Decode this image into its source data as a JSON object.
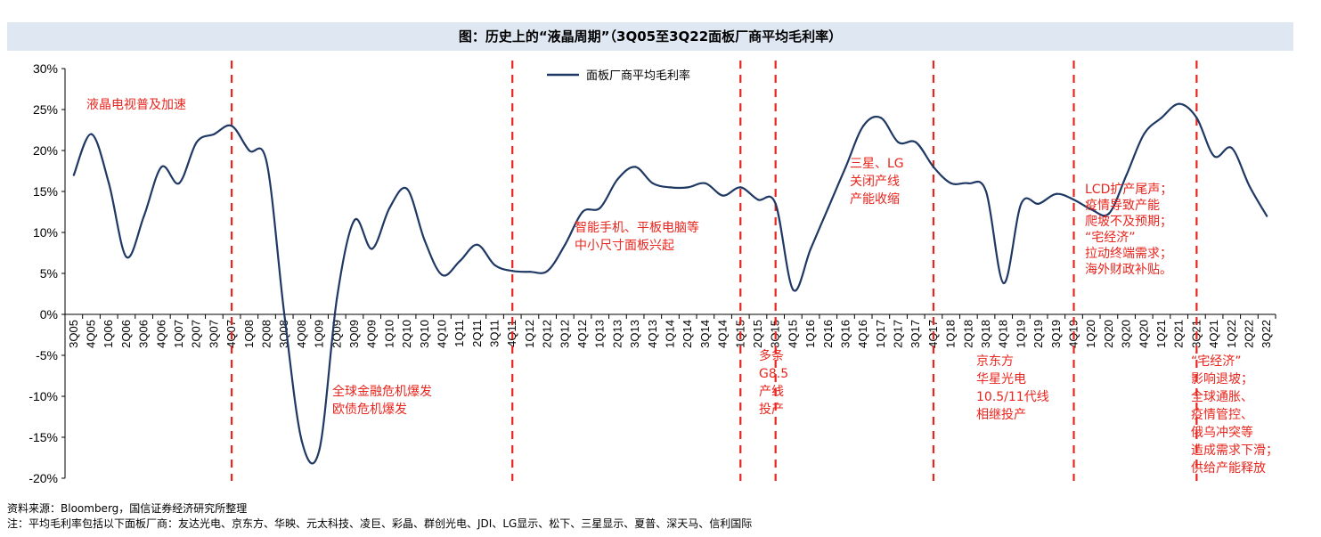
{
  "title": "图：历史上的“液晶周期”（3Q05至3Q22面板厂商平均毛利率）",
  "source_note": "资料来源：Bloomberg，国信证券经济研究所整理",
  "footnote": "注：平均毛利率包括以下面板厂商：友达光电、京东方、华映、元太科技、凌巨、彩晶、群创光电、JDI、LG显示、松下、三星显示、夏普、深天马、信利国际",
  "colors": {
    "line": "#1f3864",
    "annotation": "#e8251e",
    "axis": "#000000",
    "title_bg": "#dfe8f2"
  },
  "chart_data": {
    "type": "line",
    "legend_position": "top-center",
    "grid": false,
    "ylim": [
      -20,
      30
    ],
    "yticks": [
      "30%",
      "25%",
      "20%",
      "15%",
      "10%",
      "5%",
      "0%",
      "-5%",
      "-10%",
      "-15%",
      "-20%"
    ],
    "ytick_values": [
      30,
      25,
      20,
      15,
      10,
      5,
      0,
      -5,
      -10,
      -15,
      -20
    ],
    "categories": [
      "3Q05",
      "4Q05",
      "1Q06",
      "2Q06",
      "3Q06",
      "4Q06",
      "1Q07",
      "2Q07",
      "3Q07",
      "4Q07",
      "1Q08",
      "2Q08",
      "3Q08",
      "4Q08",
      "1Q09",
      "2Q09",
      "3Q09",
      "4Q09",
      "1Q10",
      "2Q10",
      "3Q10",
      "4Q10",
      "1Q11",
      "2Q11",
      "3Q11",
      "4Q11",
      "1Q12",
      "2Q12",
      "3Q12",
      "4Q12",
      "1Q13",
      "2Q13",
      "3Q13",
      "4Q13",
      "1Q14",
      "2Q14",
      "3Q14",
      "4Q14",
      "1Q15",
      "2Q15",
      "3Q15",
      "4Q15",
      "1Q16",
      "2Q16",
      "3Q16",
      "4Q16",
      "1Q17",
      "2Q17",
      "3Q17",
      "4Q17",
      "1Q18",
      "2Q18",
      "3Q18",
      "4Q18",
      "1Q19",
      "2Q19",
      "3Q19",
      "4Q19",
      "1Q20",
      "2Q20",
      "3Q20",
      "4Q20",
      "1Q21",
      "2Q21",
      "3Q21",
      "4Q21",
      "1Q22",
      "2Q22",
      "3Q22"
    ],
    "series": [
      {
        "name": "面板厂商平均毛利率",
        "values": [
          17,
          22,
          16,
          7,
          12,
          18,
          16,
          21,
          22,
          23,
          20,
          18.5,
          0,
          -15.5,
          -16.5,
          2,
          11.5,
          8,
          13,
          15.3,
          9,
          4.8,
          6.5,
          8.5,
          6,
          5.3,
          5.2,
          5.3,
          8.5,
          12.5,
          13,
          16.5,
          18,
          16,
          15.5,
          15.5,
          16,
          14.5,
          15.5,
          14,
          13.5,
          3,
          8,
          13,
          18,
          23,
          24,
          21,
          21,
          18,
          16,
          16,
          15,
          3.8,
          13.5,
          13.5,
          14.7,
          14,
          12.8,
          12.3,
          17,
          22,
          24,
          25.7,
          24,
          19.3,
          20.3,
          15.7,
          12
        ]
      }
    ],
    "event_lines_at": [
      "4Q07",
      "4Q11",
      "1Q15",
      "3Q15",
      "4Q17",
      "4Q19",
      "3Q21"
    ],
    "annotations": [
      {
        "lines": [
          "液晶电视普及加速"
        ]
      },
      {
        "lines": [
          "全球金融危机爆发",
          "欧债危机爆发"
        ]
      },
      {
        "lines": [
          "智能手机、平板电脑等",
          "中小尺寸面板兴起"
        ]
      },
      {
        "lines": [
          "多条",
          "G8.5",
          "产线",
          "投产"
        ]
      },
      {
        "lines": [
          "三星、LG",
          "关闭产线",
          "产能收缩"
        ]
      },
      {
        "lines": [
          "京东方",
          "华星光电",
          "10.5/11代线",
          "相继投产"
        ]
      },
      {
        "lines": [
          "LCD扩产尾声；",
          "疫情导致产能",
          "爬坡不及预期；",
          "“宅经济”",
          "拉动终端需求；",
          "海外财政补贴。"
        ]
      },
      {
        "lines": [
          "“宅经济”",
          "影响退坡；",
          "全球通胀、",
          "疫情管控、",
          "俄乌冲突等",
          "造成需求下滑；",
          "供给产能释放"
        ]
      }
    ]
  }
}
